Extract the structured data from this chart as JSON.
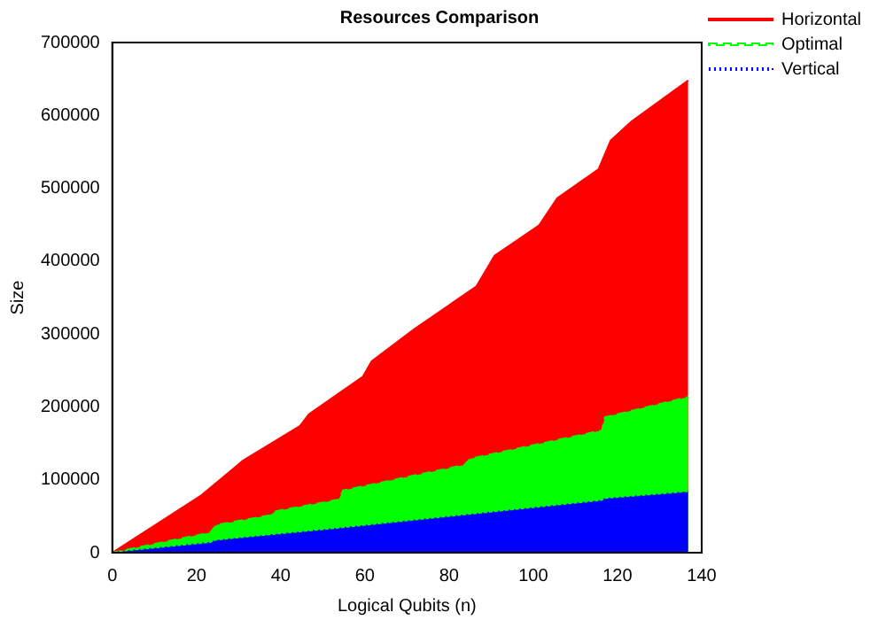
{
  "chart_data": {
    "type": "area",
    "title": "Resources Comparison",
    "xlabel": "Logical Qubits (n)",
    "ylabel": "Size",
    "xlim": [
      0,
      140
    ],
    "xticks": [
      0,
      20,
      40,
      60,
      80,
      100,
      120,
      140
    ],
    "ylim": [
      0,
      700000
    ],
    "yticks": [
      0,
      100000,
      200000,
      300000,
      400000,
      500000,
      600000,
      700000
    ],
    "grid": false,
    "legend": "top right",
    "series": [
      {
        "name": "Horizontal",
        "color": "#ff0000",
        "line_style": "solid",
        "x": [
          0,
          21.2,
          31.1,
          44.6,
          46.7,
          59.5,
          61.6,
          71.6,
          86.5,
          90.8,
          101.4,
          105.7,
          115.5,
          118.4,
          123.3,
          136.8
        ],
        "values": [
          0,
          79000,
          126500,
          174000,
          189800,
          241300,
          262700,
          306200,
          365500,
          407400,
          449200,
          486500,
          526100,
          565500,
          591600,
          648000
        ]
      },
      {
        "name": "Optimal",
        "color": "#00ff00",
        "line_style": "dashed",
        "x": [
          0,
          9.9,
          23.3,
          24.7,
          37.5,
          38.9,
          53.8,
          54.8,
          83.6,
          85,
          116.3,
          117,
          136.8
        ],
        "values": [
          0,
          11900,
          27700,
          38000,
          51500,
          57000,
          72800,
          85400,
          120300,
          128900,
          167800,
          185800,
          213600
        ]
      },
      {
        "name": "Vertical",
        "color": "#0000ff",
        "line_style": "dotted",
        "x": [
          0,
          23.3,
          24.7,
          53.8,
          116.3,
          117,
          136.8
        ],
        "values": [
          0,
          13500,
          16600,
          33200,
          71200,
          73800,
          83100
        ]
      }
    ]
  }
}
